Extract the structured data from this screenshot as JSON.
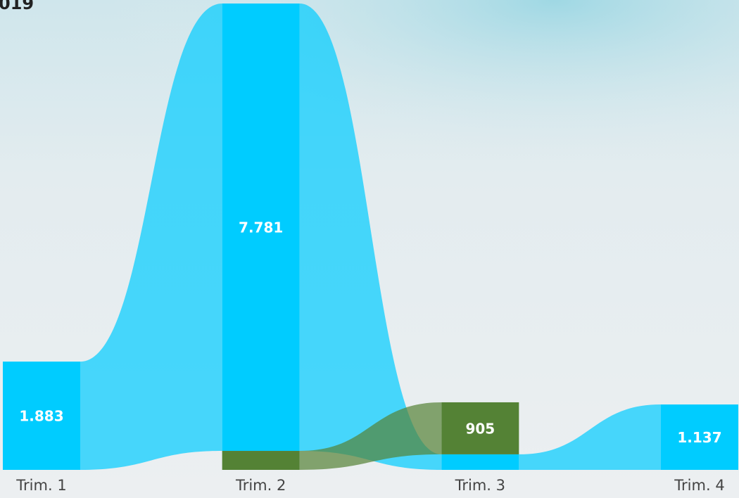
{
  "chart_data": {
    "type": "ribbon",
    "title": "019",
    "categories": [
      "Trim. 1",
      "Trim. 2",
      "Trim. 3",
      "Trim. 4"
    ],
    "series": [
      {
        "color": "#00ccff",
        "values": [
          1883,
          7781,
          270,
          1137
        ],
        "value_labels": [
          "1.883",
          "7.781",
          null,
          "1.137"
        ]
      },
      {
        "color": "#548235",
        "values": [
          null,
          330,
          905,
          null
        ],
        "value_labels": [
          null,
          null,
          "905",
          null
        ]
      }
    ]
  }
}
